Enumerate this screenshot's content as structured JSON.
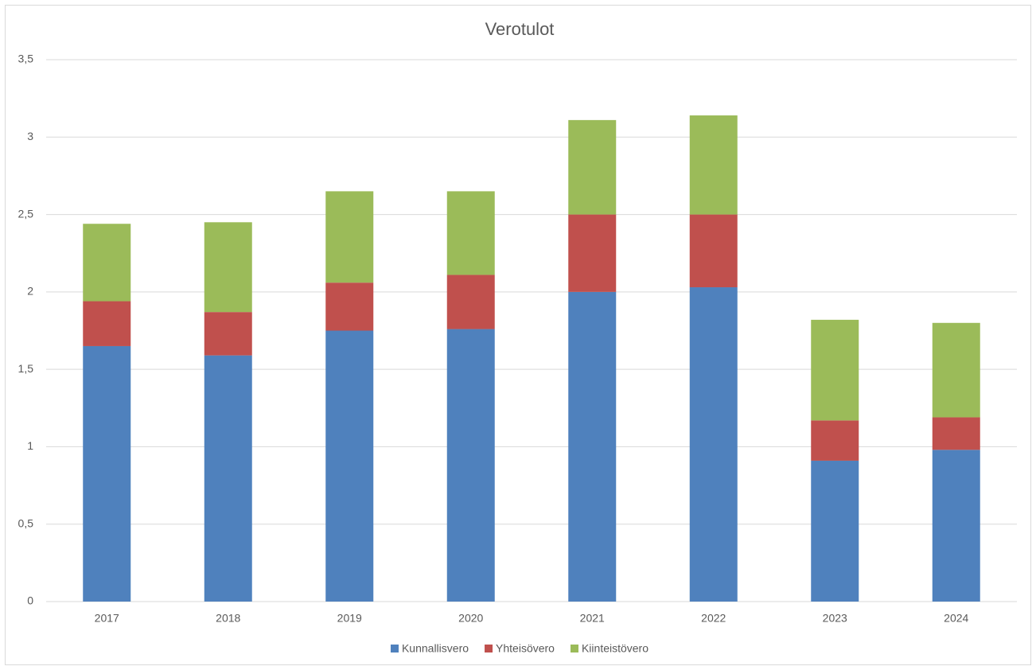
{
  "chart_data": {
    "type": "stacked_bar",
    "title": "Verotulot",
    "categories": [
      "2017",
      "2018",
      "2019",
      "2020",
      "2021",
      "2022",
      "2023",
      "2024"
    ],
    "series": [
      {
        "name": "Kunnallisvero",
        "color": "#4f81bd",
        "values": [
          1.65,
          1.59,
          1.75,
          1.76,
          2.0,
          2.03,
          0.91,
          0.98
        ]
      },
      {
        "name": "Yhteisövero",
        "color": "#c0504d",
        "values": [
          0.29,
          0.28,
          0.31,
          0.35,
          0.5,
          0.47,
          0.26,
          0.21
        ]
      },
      {
        "name": "Kiinteistövero",
        "color": "#9bbb59",
        "values": [
          0.5,
          0.58,
          0.59,
          0.54,
          0.61,
          0.64,
          0.65,
          0.61
        ]
      }
    ],
    "ylim": [
      0,
      3.5
    ],
    "yticks": [
      0,
      {
        "value": 0.5,
        "label": "0,5"
      },
      1,
      {
        "value": 1.5,
        "label": "1,5"
      },
      2,
      {
        "value": 2.5,
        "label": "2,5"
      },
      3,
      {
        "value": 3.5,
        "label": "3,5"
      }
    ],
    "grid": true,
    "legend": "bottom"
  }
}
